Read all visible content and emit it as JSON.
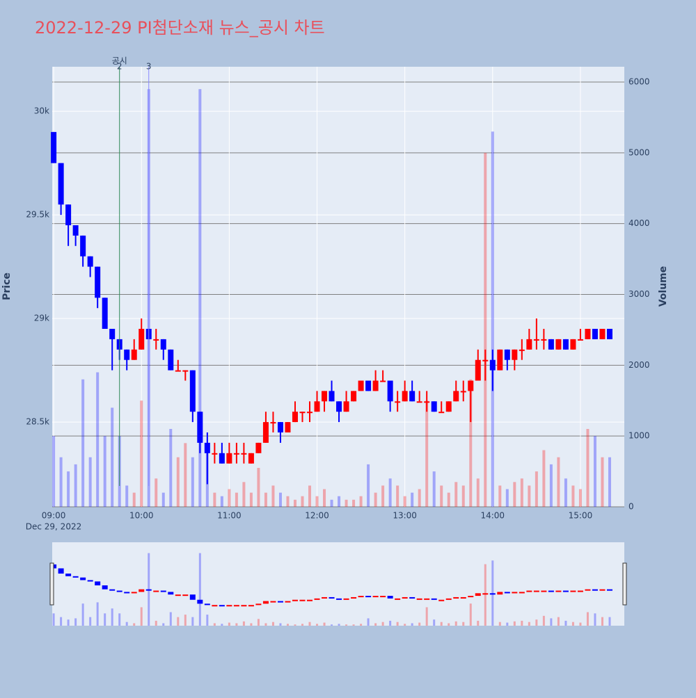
{
  "chart_data": {
    "type": "candlestick",
    "title": "2022-12-29 PI첨단소재 뉴스_공시 차트",
    "y_label": "Price",
    "y2_label": "Volume",
    "date": "Dec 29, 2022",
    "increasing_color": "#ff0000",
    "decreasing_color": "#0000ff",
    "xlim": [
      "08:59",
      "15:30"
    ],
    "xticks": [
      "09:00",
      "10:00",
      "11:00",
      "12:00",
      "13:00",
      "14:00",
      "15:00"
    ],
    "ylim": [
      28091,
      30215
    ],
    "yticks": [
      {
        "value": 28500,
        "label": "28.5k"
      },
      {
        "value": 29000,
        "label": "29k"
      },
      {
        "value": 29500,
        "label": "29.5k"
      },
      {
        "value": 30000,
        "label": "30k"
      }
    ],
    "y2lim": [
      0,
      6216
    ],
    "y2ticks": [
      0,
      1000,
      2000,
      3000,
      4000,
      5000,
      6000
    ],
    "grid": true,
    "annotations": [
      {
        "x": "09:45",
        "text": "2",
        "name": "공시",
        "color": "#2e8b57"
      },
      {
        "x": "10:05",
        "text": "3",
        "color": "#8888ff"
      }
    ],
    "x": [
      "09:00",
      "09:05",
      "09:10",
      "09:15",
      "09:20",
      "09:25",
      "09:30",
      "09:35",
      "09:40",
      "09:45",
      "09:50",
      "09:55",
      "10:00",
      "10:05",
      "10:10",
      "10:15",
      "10:20",
      "10:25",
      "10:30",
      "10:35",
      "10:40",
      "10:45",
      "10:50",
      "10:55",
      "11:00",
      "11:05",
      "11:10",
      "11:15",
      "11:20",
      "11:25",
      "11:30",
      "11:35",
      "11:40",
      "11:45",
      "11:50",
      "11:55",
      "12:00",
      "12:05",
      "12:10",
      "12:15",
      "12:20",
      "12:25",
      "12:30",
      "12:35",
      "12:40",
      "12:45",
      "12:50",
      "12:55",
      "13:00",
      "13:05",
      "13:10",
      "13:15",
      "13:20",
      "13:25",
      "13:30",
      "13:35",
      "13:40",
      "13:45",
      "13:50",
      "13:55",
      "14:00",
      "14:05",
      "14:10",
      "14:15",
      "14:20",
      "14:25",
      "14:30",
      "14:35",
      "14:40",
      "14:45",
      "14:50",
      "14:55",
      "15:00",
      "15:05",
      "15:10",
      "15:15",
      "15:20"
    ],
    "open": [
      29900,
      29750,
      29550,
      29450,
      29400,
      29300,
      29250,
      29100,
      28950,
      28900,
      28850,
      28800,
      28850,
      28950,
      28900,
      28900,
      28850,
      28750,
      28750,
      28750,
      28550,
      28400,
      28350,
      28350,
      28300,
      28350,
      28350,
      28300,
      28350,
      28400,
      28500,
      28500,
      28450,
      28500,
      28550,
      28550,
      28550,
      28600,
      28650,
      28600,
      28550,
      28600,
      28650,
      28700,
      28650,
      28700,
      28700,
      28600,
      28600,
      28650,
      28600,
      28600,
      28600,
      28550,
      28550,
      28600,
      28650,
      28650,
      28700,
      28800,
      28800,
      28750,
      28850,
      28800,
      28850,
      28850,
      28900,
      28900,
      28900,
      28850,
      28900,
      28850,
      28900,
      28900,
      28950,
      28900,
      28950
    ],
    "high": [
      29900,
      29750,
      29550,
      29450,
      29400,
      29300,
      29250,
      29100,
      28950,
      28900,
      28850,
      28900,
      29000,
      28950,
      28950,
      28900,
      28850,
      28800,
      28750,
      28750,
      28550,
      28450,
      28400,
      28400,
      28400,
      28400,
      28400,
      28350,
      28400,
      28550,
      28550,
      28500,
      28500,
      28600,
      28550,
      28600,
      28650,
      28650,
      28700,
      28600,
      28650,
      28650,
      28700,
      28700,
      28750,
      28750,
      28700,
      28650,
      28700,
      28700,
      28650,
      28650,
      28600,
      28600,
      28600,
      28700,
      28700,
      28700,
      28850,
      28850,
      28850,
      28850,
      28850,
      28850,
      28900,
      28950,
      29000,
      28950,
      28900,
      28900,
      28900,
      28900,
      28950,
      28950,
      28950,
      28950,
      28950
    ],
    "low": [
      29750,
      29500,
      29350,
      29350,
      29250,
      29200,
      29050,
      28950,
      28750,
      28800,
      28750,
      28800,
      28850,
      28900,
      28850,
      28800,
      28750,
      28750,
      28700,
      28500,
      28350,
      28200,
      28300,
      28300,
      28300,
      28300,
      28300,
      28300,
      28350,
      28400,
      28450,
      28400,
      28450,
      28500,
      28500,
      28500,
      28550,
      28550,
      28600,
      28500,
      28550,
      28600,
      28650,
      28650,
      28650,
      28700,
      28550,
      28550,
      28600,
      28600,
      28600,
      28550,
      28550,
      28550,
      28550,
      28600,
      28600,
      28500,
      28700,
      28700,
      28650,
      28750,
      28750,
      28750,
      28800,
      28850,
      28850,
      28850,
      28850,
      28850,
      28850,
      28850,
      28900,
      28900,
      28900,
      28900,
      28900
    ],
    "close": [
      29750,
      29550,
      29450,
      29400,
      29300,
      29250,
      29100,
      28950,
      28900,
      28850,
      28800,
      28850,
      28950,
      28900,
      28900,
      28850,
      28750,
      28750,
      28750,
      28550,
      28400,
      28350,
      28350,
      28300,
      28350,
      28350,
      28350,
      28350,
      28400,
      28500,
      28500,
      28450,
      28500,
      28550,
      28550,
      28550,
      28600,
      28650,
      28600,
      28550,
      28600,
      28650,
      28700,
      28650,
      28700,
      28700,
      28600,
      28600,
      28650,
      28600,
      28600,
      28600,
      28550,
      28550,
      28600,
      28650,
      28650,
      28700,
      28800,
      28800,
      28750,
      28850,
      28800,
      28850,
      28850,
      28900,
      28900,
      28900,
      28850,
      28900,
      28850,
      28900,
      28900,
      28950,
      28900,
      28950,
      28900
    ],
    "volume": [
      1000,
      700,
      500,
      600,
      1800,
      700,
      1900,
      1000,
      1400,
      1000,
      300,
      200,
      1500,
      5900,
      400,
      200,
      1100,
      700,
      900,
      700,
      5900,
      900,
      200,
      150,
      250,
      200,
      350,
      200,
      550,
      200,
      300,
      200,
      150,
      100,
      150,
      300,
      150,
      250,
      100,
      150,
      100,
      100,
      150,
      600,
      200,
      300,
      400,
      300,
      150,
      200,
      250,
      1500,
      500,
      300,
      200,
      350,
      300,
      1800,
      400,
      5000,
      5300,
      300,
      250,
      350,
      400,
      300,
      500,
      800,
      600,
      700,
      400,
      300,
      250,
      1100,
      1000,
      700,
      700
    ]
  }
}
